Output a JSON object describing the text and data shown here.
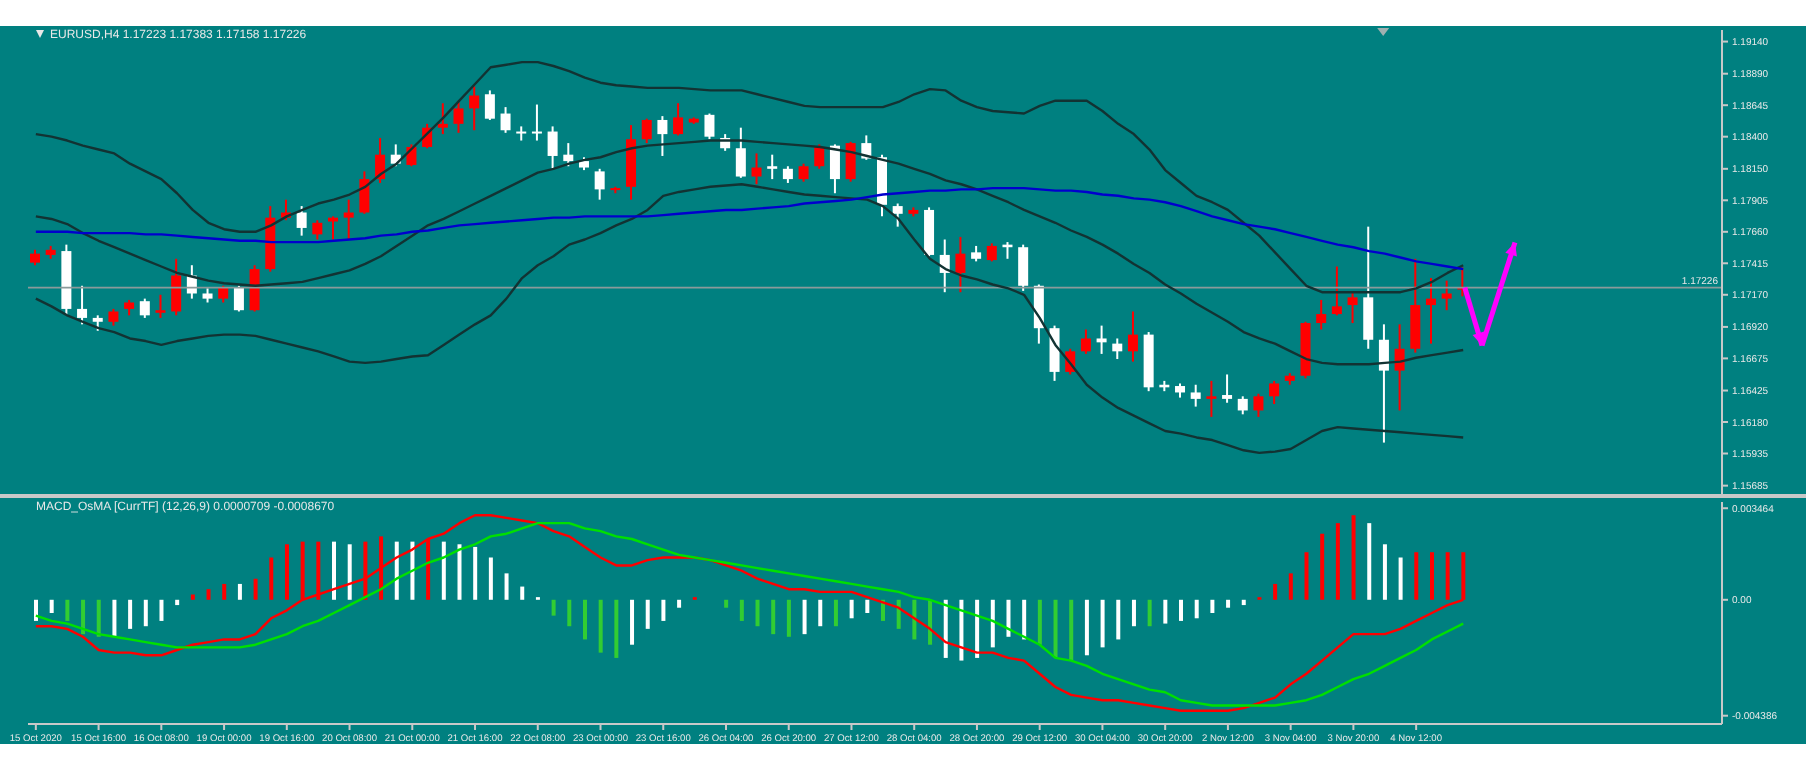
{
  "chart_data": [
    {
      "type": "candlestick",
      "title": "EURUSD,H4  1.17223 1.17383 1.17158 1.17226",
      "categories": [
        null,
        null,
        null,
        null,
        null,
        null,
        null,
        null,
        null,
        null,
        null,
        null,
        null,
        null,
        null,
        null,
        null,
        null,
        null,
        null,
        null,
        null,
        null,
        null,
        null,
        null,
        null,
        null,
        null,
        null,
        null,
        null,
        null,
        null,
        null,
        null,
        null,
        null,
        null,
        null,
        null,
        null,
        null,
        null,
        null,
        null,
        null,
        null,
        null,
        null,
        null,
        null,
        null,
        null,
        null,
        null,
        null,
        null,
        null,
        null,
        null,
        null,
        null,
        null,
        null,
        null,
        null,
        null,
        null,
        null,
        null,
        null,
        null,
        null,
        null,
        null,
        null,
        null,
        null,
        null,
        null,
        null,
        null,
        null,
        null,
        null,
        null,
        null,
        null,
        null,
        null,
        null
      ],
      "ohlc": [
        [
          1.1742,
          1.1752,
          1.174,
          1.1749
        ],
        [
          1.1748,
          1.1755,
          1.1745,
          1.1752
        ],
        [
          1.1751,
          1.1756,
          1.1701,
          1.1706
        ],
        [
          1.1706,
          1.1724,
          1.1694,
          1.1699
        ],
        [
          1.1699,
          1.1701,
          1.1689,
          1.1696
        ],
        [
          1.1696,
          1.1706,
          1.1693,
          1.1704
        ],
        [
          1.1706,
          1.1713,
          1.1701,
          1.1711
        ],
        [
          1.1712,
          1.1714,
          1.1699,
          1.1701
        ],
        [
          1.1703,
          1.1717,
          1.1699,
          1.1705
        ],
        [
          1.1704,
          1.1745,
          1.1701,
          1.1732
        ],
        [
          1.1732,
          1.174,
          1.1714,
          1.1718
        ],
        [
          1.1718,
          1.1722,
          1.1711,
          1.1714
        ],
        [
          1.1714,
          1.1724,
          1.1711,
          1.1723
        ],
        [
          1.1723,
          1.1724,
          1.1704,
          1.1705
        ],
        [
          1.1705,
          1.174,
          1.1704,
          1.1737
        ],
        [
          1.1737,
          1.1786,
          1.1735,
          1.1777
        ],
        [
          1.1777,
          1.1791,
          1.1775,
          1.1781
        ],
        [
          1.1781,
          1.1786,
          1.1763,
          1.1769
        ],
        [
          1.1764,
          1.1775,
          1.176,
          1.1773
        ],
        [
          1.1774,
          1.1778,
          1.176,
          1.1777
        ],
        [
          1.1777,
          1.1791,
          1.176,
          1.1781
        ],
        [
          1.1781,
          1.1813,
          1.178,
          1.1807
        ],
        [
          1.1807,
          1.1839,
          1.1804,
          1.1826
        ],
        [
          1.1826,
          1.1834,
          1.1817,
          1.1819
        ],
        [
          1.1818,
          1.1834,
          1.1817,
          1.1832
        ],
        [
          1.1832,
          1.185,
          1.1831,
          1.1847
        ],
        [
          1.1847,
          1.1866,
          1.1842,
          1.185
        ],
        [
          1.185,
          1.1868,
          1.1843,
          1.1862
        ],
        [
          1.1862,
          1.1879,
          1.1845,
          1.1872
        ],
        [
          1.1873,
          1.1876,
          1.1853,
          1.1854
        ],
        [
          1.1858,
          1.1863,
          1.1843,
          1.1845
        ],
        [
          1.1844,
          1.1848,
          1.1837,
          1.1843
        ],
        [
          1.1844,
          1.1865,
          1.1837,
          1.1843
        ],
        [
          1.1844,
          1.1848,
          1.1815,
          1.1825
        ],
        [
          1.1826,
          1.1835,
          1.1817,
          1.1821
        ],
        [
          1.1821,
          1.1824,
          1.1814,
          1.1816
        ],
        [
          1.1813,
          1.1815,
          1.1791,
          1.1799
        ],
        [
          1.1799,
          1.1801,
          1.1796,
          1.18
        ],
        [
          1.1801,
          1.1849,
          1.1791,
          1.1838
        ],
        [
          1.1838,
          1.1854,
          1.1835,
          1.1853
        ],
        [
          1.1853,
          1.1856,
          1.1825,
          1.1842
        ],
        [
          1.1842,
          1.1866,
          1.1841,
          1.1855
        ],
        [
          1.1851,
          1.1855,
          1.185,
          1.1854
        ],
        [
          1.1857,
          1.1858,
          1.1838,
          1.184
        ],
        [
          1.1839,
          1.1842,
          1.1829,
          1.1831
        ],
        [
          1.1831,
          1.1847,
          1.1808,
          1.1809
        ],
        [
          1.1809,
          1.1827,
          1.1803,
          1.1816
        ],
        [
          1.1817,
          1.1826,
          1.1807,
          1.1815
        ],
        [
          1.1815,
          1.1817,
          1.1804,
          1.1807
        ],
        [
          1.1807,
          1.1819,
          1.1805,
          1.1817
        ],
        [
          1.1817,
          1.1834,
          1.1815,
          1.1832
        ],
        [
          1.1833,
          1.1834,
          1.1796,
          1.1807
        ],
        [
          1.1807,
          1.1836,
          1.1805,
          1.1835
        ],
        [
          1.1835,
          1.1841,
          1.1822,
          1.1823
        ],
        [
          1.1824,
          1.1826,
          1.1778,
          1.1787
        ],
        [
          1.1786,
          1.1788,
          1.177,
          1.178
        ],
        [
          1.178,
          1.1785,
          1.1778,
          1.1783
        ],
        [
          1.1783,
          1.1785,
          1.1747,
          1.1748
        ],
        [
          1.1748,
          1.176,
          1.1719,
          1.1734
        ],
        [
          1.1734,
          1.1762,
          1.1719,
          1.1749
        ],
        [
          1.175,
          1.1755,
          1.1743,
          1.1745
        ],
        [
          1.1744,
          1.1757,
          1.1743,
          1.1755
        ],
        [
          1.1756,
          1.1758,
          1.1745,
          1.1754
        ],
        [
          1.1754,
          1.1756,
          1.172,
          1.1724
        ],
        [
          1.1724,
          1.1725,
          1.1679,
          1.1691
        ],
        [
          1.1691,
          1.1693,
          1.165,
          1.1657
        ],
        [
          1.1657,
          1.1675,
          1.1655,
          1.1673
        ],
        [
          1.1673,
          1.169,
          1.1671,
          1.1683
        ],
        [
          1.1683,
          1.1693,
          1.1671,
          1.168
        ],
        [
          1.1679,
          1.1683,
          1.1667,
          1.1673
        ],
        [
          1.1673,
          1.1704,
          1.1665,
          1.1686
        ],
        [
          1.1686,
          1.1688,
          1.1642,
          1.1645
        ],
        [
          1.1647,
          1.165,
          1.1642,
          1.1645
        ],
        [
          1.1646,
          1.1648,
          1.1637,
          1.1641
        ],
        [
          1.1641,
          1.1647,
          1.163,
          1.1636
        ],
        [
          1.1636,
          1.165,
          1.1622,
          1.1638
        ],
        [
          1.1639,
          1.1655,
          1.1633,
          1.1636
        ],
        [
          1.1636,
          1.1638,
          1.1624,
          1.1627
        ],
        [
          1.1627,
          1.164,
          1.1622,
          1.1638
        ],
        [
          1.1638,
          1.165,
          1.1632,
          1.1648
        ],
        [
          1.165,
          1.1656,
          1.1647,
          1.1654
        ],
        [
          1.1654,
          1.1696,
          1.1652,
          1.1695
        ],
        [
          1.1695,
          1.1713,
          1.169,
          1.1702
        ],
        [
          1.1702,
          1.1739,
          1.1701,
          1.1708
        ],
        [
          1.1709,
          1.1719,
          1.1695,
          1.1715
        ],
        [
          1.1715,
          1.177,
          1.1675,
          1.1682
        ],
        [
          1.1682,
          1.1694,
          1.1602,
          1.1658
        ],
        [
          1.1658,
          1.1694,
          1.1627,
          1.1675
        ],
        [
          1.1675,
          1.1745,
          1.1672,
          1.1709
        ],
        [
          1.1709,
          1.173,
          1.1679,
          1.1714
        ],
        [
          1.1714,
          1.1728,
          1.1705,
          1.1718
        ],
        [
          1.17223,
          1.17383,
          1.17158,
          1.17226
        ]
      ],
      "colors": [
        "#ff0000",
        "#ff0000",
        "#ffffff",
        "#ffffff",
        "#ffffff",
        "#ff0000",
        "#ff0000",
        "#ffffff",
        "#ff0000",
        "#ff0000",
        "#ffffff",
        "#ffffff",
        "#ff0000",
        "#ffffff",
        "#ff0000",
        "#ff0000",
        "#ff0000",
        "#ffffff",
        "#ff0000",
        "#ff0000",
        "#ff0000",
        "#ff0000",
        "#ff0000",
        "#ffffff",
        "#ff0000",
        "#ff0000",
        "#ff0000",
        "#ff0000",
        "#ff0000",
        "#ffffff",
        "#ffffff",
        "#ffffff",
        "#ffffff",
        "#ffffff",
        "#ffffff",
        "#ffffff",
        "#ffffff",
        "#ff0000",
        "#ff0000",
        "#ff0000",
        "#ffffff",
        "#ff0000",
        "#ff0000",
        "#ffffff",
        "#ffffff",
        "#ffffff",
        "#ff0000",
        "#ffffff",
        "#ffffff",
        "#ff0000",
        "#ff0000",
        "#ffffff",
        "#ff0000",
        "#ffffff",
        "#ffffff",
        "#ffffff",
        "#ff0000",
        "#ffffff",
        "#ffffff",
        "#ff0000",
        "#ffffff",
        "#ff0000",
        "#ffffff",
        "#ffffff",
        "#ffffff",
        "#ffffff",
        "#ff0000",
        "#ff0000",
        "#ffffff",
        "#ffffff",
        "#ff0000",
        "#ffffff",
        "#ffffff",
        "#ffffff",
        "#ffffff",
        "#ff0000",
        "#ffffff",
        "#ffffff",
        "#ff0000",
        "#ff0000",
        "#ff0000",
        "#ff0000",
        "#ff0000",
        "#ff0000",
        "#ff0000",
        "#ffffff",
        "#ffffff",
        "#ff0000",
        "#ff0000",
        "#ff0000",
        "#ff0000",
        "#ff0000"
      ],
      "series": [
        {
          "type": "line",
          "color": "#123333",
          "values": [
            1.1842,
            1.184,
            1.1837,
            1.1833,
            1.183,
            1.1827,
            1.1819,
            1.1813,
            1.1807,
            1.1796,
            1.1783,
            1.1773,
            1.1768,
            1.1766,
            1.1766,
            1.1771,
            1.1778,
            1.1783,
            1.1788,
            1.1791,
            1.1795,
            1.1801,
            1.1811,
            1.1819,
            1.1831,
            1.1843,
            1.1855,
            1.1868,
            1.1881,
            1.1894,
            1.1896,
            1.1898,
            1.1898,
            1.1895,
            1.1891,
            1.1886,
            1.1882,
            1.188,
            1.1879,
            1.1878,
            1.1878,
            1.1878,
            1.1877,
            1.1876,
            1.1876,
            1.1876,
            1.1873,
            1.187,
            1.1867,
            1.1864,
            1.1863,
            1.1863,
            1.1863,
            1.1863,
            1.1863,
            1.1867,
            1.1873,
            1.1877,
            1.1876,
            1.1868,
            1.1863,
            1.186,
            1.1859,
            1.1858,
            1.1864,
            1.1868,
            1.1868,
            1.1868,
            1.186,
            1.185,
            1.1842,
            1.183,
            1.1814,
            1.1804,
            1.1794,
            1.1789,
            1.1783,
            1.1773,
            1.1763,
            1.175,
            1.1737,
            1.1724,
            1.1719,
            1.1719,
            1.1719,
            1.1719,
            1.1719,
            1.1719,
            1.1722,
            1.1727,
            1.1734,
            1.174
          ]
        },
        {
          "type": "line",
          "color": "#123333",
          "values": [
            1.1778,
            1.1776,
            1.1772,
            1.1765,
            1.1759,
            1.1754,
            1.1749,
            1.1744,
            1.1739,
            1.1734,
            1.1731,
            1.1728,
            1.1726,
            1.1725,
            1.1724,
            1.1725,
            1.1726,
            1.1727,
            1.173,
            1.1733,
            1.1736,
            1.1741,
            1.1747,
            1.1755,
            1.1763,
            1.1771,
            1.1776,
            1.1782,
            1.1788,
            1.1794,
            1.18,
            1.1806,
            1.1812,
            1.1815,
            1.1819,
            1.1822,
            1.1824,
            1.1828,
            1.1831,
            1.1833,
            1.1834,
            1.1835,
            1.1836,
            1.1837,
            1.1837,
            1.1837,
            1.1836,
            1.1835,
            1.1834,
            1.1833,
            1.1832,
            1.183,
            1.1828,
            1.1825,
            1.1822,
            1.1819,
            1.1815,
            1.1811,
            1.1806,
            1.1803,
            1.1799,
            1.1794,
            1.1789,
            1.1783,
            1.1778,
            1.1773,
            1.1767,
            1.1762,
            1.1756,
            1.1749,
            1.1741,
            1.1734,
            1.1725,
            1.1718,
            1.171,
            1.1703,
            1.1696,
            1.1688,
            1.1683,
            1.1679,
            1.1673,
            1.1667,
            1.1664,
            1.1663,
            1.1663,
            1.1663,
            1.1664,
            1.1665,
            1.1668,
            1.167,
            1.1672,
            1.1674
          ]
        },
        {
          "type": "line",
          "color": "#123333",
          "values": [
            1.1714,
            1.1708,
            1.1701,
            1.1696,
            1.1691,
            1.1688,
            1.1683,
            1.1681,
            1.1678,
            1.1681,
            1.1683,
            1.1685,
            1.1686,
            1.1686,
            1.1685,
            1.1682,
            1.1679,
            1.1676,
            1.1673,
            1.1669,
            1.1665,
            1.1664,
            1.1665,
            1.1667,
            1.1669,
            1.167,
            1.1678,
            1.1686,
            1.1694,
            1.1701,
            1.1714,
            1.173,
            1.174,
            1.1747,
            1.1756,
            1.176,
            1.1765,
            1.1771,
            1.1776,
            1.1783,
            1.1794,
            1.1797,
            1.1799,
            1.1801,
            1.1802,
            1.1803,
            1.1801,
            1.1799,
            1.1797,
            1.1795,
            1.1794,
            1.1793,
            1.1792,
            1.1791,
            1.1786,
            1.1776,
            1.176,
            1.1745,
            1.1737,
            1.1732,
            1.1729,
            1.1725,
            1.1722,
            1.1717,
            1.1699,
            1.1678,
            1.1663,
            1.1647,
            1.1637,
            1.1629,
            1.1623,
            1.1617,
            1.1611,
            1.1609,
            1.1606,
            1.1604,
            1.16,
            1.1596,
            1.1594,
            1.1595,
            1.1597,
            1.1604,
            1.1611,
            1.1614,
            1.1613,
            1.1612,
            1.1611,
            1.161,
            1.1609,
            1.1608,
            1.1607,
            1.1606
          ]
        },
        {
          "type": "line",
          "color": "#0000cd",
          "values": [
            1.1766,
            1.1766,
            1.1766,
            1.1765,
            1.1765,
            1.1765,
            1.1765,
            1.1764,
            1.1764,
            1.1763,
            1.1762,
            1.1761,
            1.176,
            1.1759,
            1.1759,
            1.1758,
            1.1758,
            1.1758,
            1.1758,
            1.1759,
            1.176,
            1.1761,
            1.1763,
            1.1764,
            1.1766,
            1.1767,
            1.1769,
            1.1771,
            1.1772,
            1.1773,
            1.1774,
            1.1775,
            1.1776,
            1.1777,
            1.1777,
            1.1778,
            1.1778,
            1.1778,
            1.1778,
            1.1778,
            1.1779,
            1.178,
            1.1781,
            1.1782,
            1.1783,
            1.1783,
            1.1784,
            1.1785,
            1.1786,
            1.1788,
            1.1789,
            1.179,
            1.1791,
            1.1793,
            1.1795,
            1.1796,
            1.1797,
            1.1798,
            1.1798,
            1.1799,
            1.1799,
            1.18,
            1.18,
            1.18,
            1.1799,
            1.1798,
            1.1798,
            1.1797,
            1.1795,
            1.1794,
            1.1792,
            1.1791,
            1.1789,
            1.1786,
            1.1782,
            1.1778,
            1.1775,
            1.1772,
            1.177,
            1.1768,
            1.1765,
            1.1762,
            1.1759,
            1.1756,
            1.1754,
            1.1751,
            1.1749,
            1.1746,
            1.1743,
            1.1741,
            1.1739,
            1.1737
          ]
        }
      ],
      "ylim": [
        1.1562,
        1.1923
      ],
      "yticks": [
        {
          "value": 1.1914,
          "label": "1.19140"
        },
        {
          "value": 1.1889,
          "label": "1.18890"
        },
        1.18645,
        {
          "value": 1.184,
          "label": "1.18400"
        },
        {
          "value": 1.1815,
          "label": "1.18150"
        },
        1.17905,
        {
          "value": 1.1766,
          "label": "1.17660"
        },
        1.17415,
        {
          "value": 1.1717,
          "label": "1.17170"
        },
        {
          "value": 1.1692,
          "label": "1.16920"
        },
        1.16675,
        1.16425,
        {
          "value": 1.1618,
          "label": "1.16180"
        },
        1.15935,
        1.15685
      ],
      "ref_lines": [
        {
          "axis": "y",
          "value": 1.17226,
          "label": "1.17226",
          "color": "#8a9a9a"
        }
      ],
      "tick_labels": "y"
    },
    {
      "type": "bar",
      "title": "MACD_OsMA [CurrTF] (12,26,9) 0.0000709 -0.0008670",
      "categories": [
        "15 Oct 2020",
        null,
        null,
        null,
        "15 Oct 16:00",
        null,
        null,
        null,
        "16 Oct 08:00",
        null,
        null,
        null,
        "19 Oct 00:00",
        null,
        null,
        null,
        "19 Oct 16:00",
        null,
        null,
        null,
        "20 Oct 08:00",
        null,
        null,
        null,
        "21 Oct 00:00",
        null,
        null,
        null,
        "21 Oct 16:00",
        null,
        null,
        null,
        "22 Oct 08:00",
        null,
        null,
        null,
        "23 Oct 00:00",
        null,
        null,
        null,
        "23 Oct 16:00",
        null,
        null,
        null,
        "26 Oct 04:00",
        null,
        null,
        null,
        "26 Oct 20:00",
        null,
        null,
        null,
        "27 Oct 12:00",
        null,
        null,
        null,
        "28 Oct 04:00",
        null,
        null,
        null,
        "28 Oct 20:00",
        null,
        null,
        null,
        "29 Oct 12:00",
        null,
        null,
        null,
        "30 Oct 04:00",
        null,
        null,
        null,
        "30 Oct 20:00",
        null,
        null,
        null,
        "2 Nov 12:00",
        null,
        null,
        null,
        "3 Nov 04:00",
        null,
        null,
        null,
        "3 Nov 20:00",
        null,
        null,
        null,
        "4 Nov 12:00",
        null,
        null,
        null
      ],
      "series": [
        {
          "colors": [
            "#ffffff",
            "#ffffff",
            "#32cd32",
            "#32cd32",
            "#32cd32",
            "#ffffff",
            "#ffffff",
            "#ffffff",
            "#ffffff",
            "#ffffff",
            "#ff0000",
            "#ff0000",
            "#ff0000",
            "#ffffff",
            "#ff0000",
            "#ff0000",
            "#ff0000",
            "#ff0000",
            "#ff0000",
            "#ffffff",
            "#ffffff",
            "#ff0000",
            "#ff0000",
            "#ffffff",
            "#ffffff",
            "#ff0000",
            "#ffffff",
            "#ffffff",
            "#ffffff",
            "#ffffff",
            "#ffffff",
            "#ffffff",
            "#ffffff",
            "#32cd32",
            "#32cd32",
            "#32cd32",
            "#32cd32",
            "#32cd32",
            "#ffffff",
            "#ffffff",
            "#ffffff",
            "#ffffff",
            "#ff0000",
            "#32cd32",
            "#32cd32",
            "#32cd32",
            "#32cd32",
            "#32cd32",
            "#32cd32",
            "#ffffff",
            "#ffffff",
            "#32cd32",
            "#ffffff",
            "#ffffff",
            "#32cd32",
            "#32cd32",
            "#32cd32",
            "#32cd32",
            "#ffffff",
            "#ffffff",
            "#ffffff",
            "#ffffff",
            "#ffffff",
            "#ffffff",
            "#32cd32",
            "#32cd32",
            "#32cd32",
            "#ffffff",
            "#ffffff",
            "#ffffff",
            "#ffffff",
            "#32cd32",
            "#ffffff",
            "#ffffff",
            "#ffffff",
            "#ffffff",
            "#ffffff",
            "#ffffff",
            "#ff0000",
            "#ff0000",
            "#ff0000",
            "#ff0000",
            "#ff0000",
            "#ff0000",
            "#ff0000",
            "#ffffff",
            "#ffffff",
            "#ffffff",
            "#ff0000",
            "#ff0000",
            "#ff0000",
            "#ff0000"
          ],
          "values": [
            -0.0008,
            -0.0005,
            -0.0008,
            -0.0013,
            -0.0014,
            -0.0014,
            -0.0011,
            -0.001,
            -0.0008,
            -0.0002,
            0.0002,
            0.0004,
            0.0006,
            0.0006,
            0.0008,
            0.0016,
            0.0021,
            0.0022,
            0.0022,
            0.0022,
            0.0021,
            0.0022,
            0.0024,
            0.0022,
            0.0022,
            0.0023,
            0.0022,
            0.0021,
            0.002,
            0.0016,
            0.001,
            0.0005,
            0.0001,
            -0.0006,
            -0.001,
            -0.0015,
            -0.002,
            -0.0022,
            -0.0017,
            -0.0011,
            -0.0008,
            -0.0003,
            0.0001,
            null,
            -0.0003,
            -0.0008,
            -0.001,
            -0.0013,
            -0.0014,
            -0.0013,
            -0.001,
            -0.001,
            -0.0007,
            -0.0005,
            -0.0008,
            -0.0011,
            -0.0015,
            -0.0017,
            -0.0022,
            -0.0023,
            -0.0022,
            -0.0018,
            -0.0014,
            -0.0015,
            -0.0017,
            -0.0022,
            -0.0023,
            -0.0021,
            -0.0018,
            -0.0015,
            -0.001,
            -0.001,
            -0.0009,
            -0.0008,
            -0.0007,
            -0.0005,
            -0.0003,
            -0.0002,
            0.0001,
            0.0006,
            0.001,
            0.0018,
            0.0025,
            0.0029,
            0.0032,
            0.0029,
            0.0021,
            0.0016,
            0.0018,
            0.0018,
            0.0018,
            0.0018
          ]
        },
        {
          "type": "line",
          "color": "#ff0000",
          "values": [
            -0.001,
            -0.001,
            -0.0011,
            -0.0014,
            -0.0019,
            -0.002,
            -0.002,
            -0.0021,
            -0.0021,
            -0.0019,
            -0.0017,
            -0.0016,
            -0.0015,
            -0.0015,
            -0.0013,
            -0.0007,
            -0.0004,
            0.0,
            0.0002,
            0.0004,
            0.0006,
            0.0008,
            0.0012,
            0.0016,
            0.0019,
            0.0023,
            0.0025,
            0.0029,
            0.0032,
            0.0032,
            0.0031,
            0.003,
            0.0029,
            0.0026,
            0.0024,
            0.002,
            0.0016,
            0.0013,
            0.0013,
            0.0015,
            0.0016,
            0.0016,
            0.0016,
            0.0015,
            0.0013,
            0.0011,
            0.0008,
            0.0006,
            0.0004,
            0.0004,
            0.0003,
            0.0003,
            0.0003,
            0.0001,
            -0.0001,
            -0.0003,
            -0.0007,
            -0.0011,
            -0.0016,
            -0.0018,
            -0.002,
            -0.002,
            -0.0022,
            -0.0023,
            -0.0028,
            -0.0033,
            -0.0036,
            -0.0037,
            -0.0038,
            -0.0038,
            -0.0039,
            -0.004,
            -0.0041,
            -0.0042,
            -0.0042,
            -0.0042,
            -0.0042,
            -0.0041,
            -0.0039,
            -0.0037,
            -0.0032,
            -0.0028,
            -0.0023,
            -0.0018,
            -0.0013,
            -0.0013,
            -0.0013,
            -0.0011,
            -0.0008,
            -0.0005,
            -0.0002,
            0.0
          ]
        },
        {
          "type": "line",
          "color": "#00e000",
          "values": [
            -0.0006,
            -0.0008,
            -0.0009,
            -0.0011,
            -0.0013,
            -0.0014,
            -0.0015,
            -0.0016,
            -0.0017,
            -0.0018,
            -0.0018,
            -0.0018,
            -0.0018,
            -0.0018,
            -0.0017,
            -0.0015,
            -0.0013,
            -0.001,
            -0.0008,
            -0.0005,
            -0.0002,
            0.0001,
            0.0004,
            0.0008,
            0.0011,
            0.0014,
            0.0016,
            0.0019,
            0.0021,
            0.0024,
            0.0025,
            0.0027,
            0.0029,
            0.0029,
            0.0029,
            0.0027,
            0.0026,
            0.0024,
            0.0023,
            0.0021,
            0.0019,
            0.0017,
            0.0016,
            0.0015,
            0.0014,
            0.0013,
            0.0012,
            0.0011,
            0.001,
            0.0009,
            0.0008,
            0.0007,
            0.0006,
            0.0005,
            0.0004,
            0.0003,
            0.0001,
            0.0,
            -0.0002,
            -0.0004,
            -0.0006,
            -0.0008,
            -0.0011,
            -0.0014,
            -0.0017,
            -0.0022,
            -0.0023,
            -0.0025,
            -0.0028,
            -0.003,
            -0.0032,
            -0.0034,
            -0.0035,
            -0.0038,
            -0.0039,
            -0.004,
            -0.004,
            -0.004,
            -0.004,
            -0.004,
            -0.0039,
            -0.0038,
            -0.0036,
            -0.0033,
            -0.003,
            -0.0028,
            -0.0025,
            -0.0022,
            -0.0019,
            -0.0015,
            -0.0012,
            -0.0009
          ]
        }
      ],
      "ylim": [
        -0.0047,
        0.0037
      ],
      "yticks": [
        0.003464,
        {
          "value": 0,
          "label": "0.00"
        },
        -0.004386
      ]
    }
  ]
}
